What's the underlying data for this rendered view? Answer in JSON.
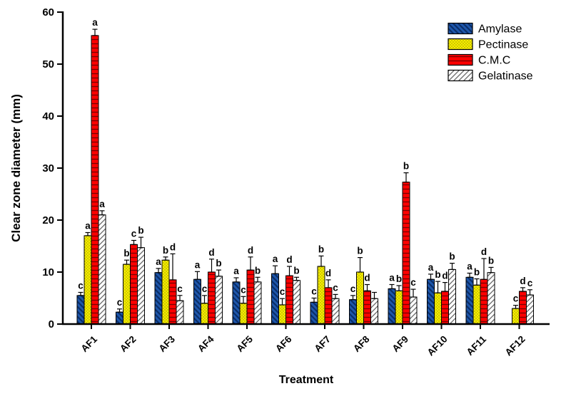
{
  "figure": {
    "background": "#ffffff",
    "axis_color": "#000000"
  },
  "chart_data": {
    "type": "bar",
    "title": "",
    "xlabel": "Treatment",
    "ylabel": "Clear zone diameter (mm)",
    "ylim": [
      0,
      60
    ],
    "ytick_step": 10,
    "yticks": [
      0,
      10,
      20,
      30,
      40,
      50,
      60
    ],
    "grid": false,
    "legend_position": "top-right-inside",
    "categories": [
      "AF1",
      "AF2",
      "AF3",
      "AF4",
      "AF5",
      "AF6",
      "AF7",
      "AF8",
      "AF9",
      "AF10",
      "AF11",
      "AF12"
    ],
    "series": [
      {
        "name": "Amylase",
        "fill": "#1E57AC",
        "hatch": "backslash",
        "hatch_color": "#0A2E68",
        "values": [
          5.5,
          2.3,
          9.9,
          8.6,
          8.1,
          9.7,
          4.2,
          4.7,
          6.8,
          8.6,
          9.0,
          null
        ],
        "errors": [
          0.6,
          0.6,
          0.8,
          1.5,
          0.8,
          1.5,
          0.8,
          0.8,
          0.8,
          1.0,
          0.8,
          null
        ],
        "letters": [
          "c",
          "c",
          "a",
          "a",
          "a",
          "a",
          "c",
          "c",
          "a",
          "a",
          "a",
          ""
        ]
      },
      {
        "name": "Pectinase",
        "fill": "#F5EE00",
        "hatch": "dots",
        "hatch_color": "#9A9000",
        "values": [
          17.0,
          11.5,
          12.3,
          4.0,
          4.0,
          3.7,
          11.1,
          10.0,
          6.4,
          6.0,
          7.5,
          3.0
        ],
        "errors": [
          0.6,
          0.8,
          0.6,
          1.5,
          1.3,
          1.2,
          2.0,
          2.8,
          1.0,
          2.2,
          1.2,
          0.6
        ],
        "letters": [
          "a",
          "b",
          "b",
          "c",
          "c",
          "c",
          "b",
          "b",
          "b",
          "b",
          "b",
          "c"
        ]
      },
      {
        "name": "C.M.C",
        "fill": "#FF0000",
        "hatch": "hlines",
        "hatch_color": "#7A0000",
        "values": [
          55.5,
          15.3,
          8.5,
          10.0,
          10.4,
          9.3,
          7.0,
          6.4,
          27.3,
          6.3,
          8.6,
          6.3
        ],
        "errors": [
          1.2,
          0.8,
          5.0,
          2.5,
          2.5,
          1.8,
          1.5,
          1.2,
          1.8,
          1.7,
          4.0,
          0.7
        ],
        "letters": [
          "a",
          "c",
          "d",
          "d",
          "d",
          "d",
          "d",
          "d",
          "b",
          "d",
          "d",
          "d"
        ]
      },
      {
        "name": "Gelatinase",
        "fill": "#FFFFFF",
        "hatch": "slash",
        "hatch_color": "#666666",
        "values": [
          21.0,
          14.7,
          4.5,
          9.2,
          8.1,
          8.4,
          4.9,
          4.9,
          5.2,
          10.5,
          9.9,
          5.6
        ],
        "errors": [
          0.8,
          2.0,
          1.0,
          1.2,
          0.9,
          0.6,
          0.8,
          1.2,
          1.5,
          1.2,
          1.0,
          1.0
        ],
        "letters": [
          "a",
          "b",
          "c",
          "b",
          "b",
          "b",
          "c",
          "",
          "c",
          "b",
          "b",
          "c"
        ]
      }
    ]
  }
}
